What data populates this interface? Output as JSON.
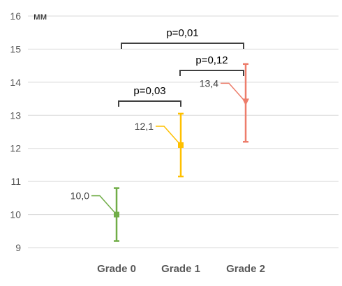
{
  "chart_data": {
    "type": "scatter",
    "title": "",
    "xlabel": "",
    "ylabel": "мм",
    "ylim": [
      9,
      16
    ],
    "yticks": [
      9,
      10,
      11,
      12,
      13,
      14,
      15,
      16
    ],
    "grid": true,
    "categories": [
      "Grade 0",
      "Grade 1",
      "Grade 2"
    ],
    "points": [
      {
        "category": "Grade 0",
        "value": 10.0,
        "label": "10,0",
        "err_low": 9.2,
        "err_high": 10.8,
        "color": "#70ad47",
        "marker": "square"
      },
      {
        "category": "Grade 1",
        "value": 12.1,
        "label": "12,1",
        "err_low": 11.15,
        "err_high": 13.05,
        "color": "#ffc000",
        "marker": "square"
      },
      {
        "category": "Grade 2",
        "value": 13.4,
        "label": "13,4",
        "err_low": 12.2,
        "err_high": 14.55,
        "color": "#ed7d6b",
        "marker": "triangle"
      }
    ],
    "comparisons": [
      {
        "from": "Grade 0",
        "to": "Grade 1",
        "label": "p=0,03"
      },
      {
        "from": "Grade 1",
        "to": "Grade 2",
        "label": "p=0,12"
      },
      {
        "from": "Grade 0",
        "to": "Grade 2",
        "label": "p=0,01"
      }
    ]
  }
}
